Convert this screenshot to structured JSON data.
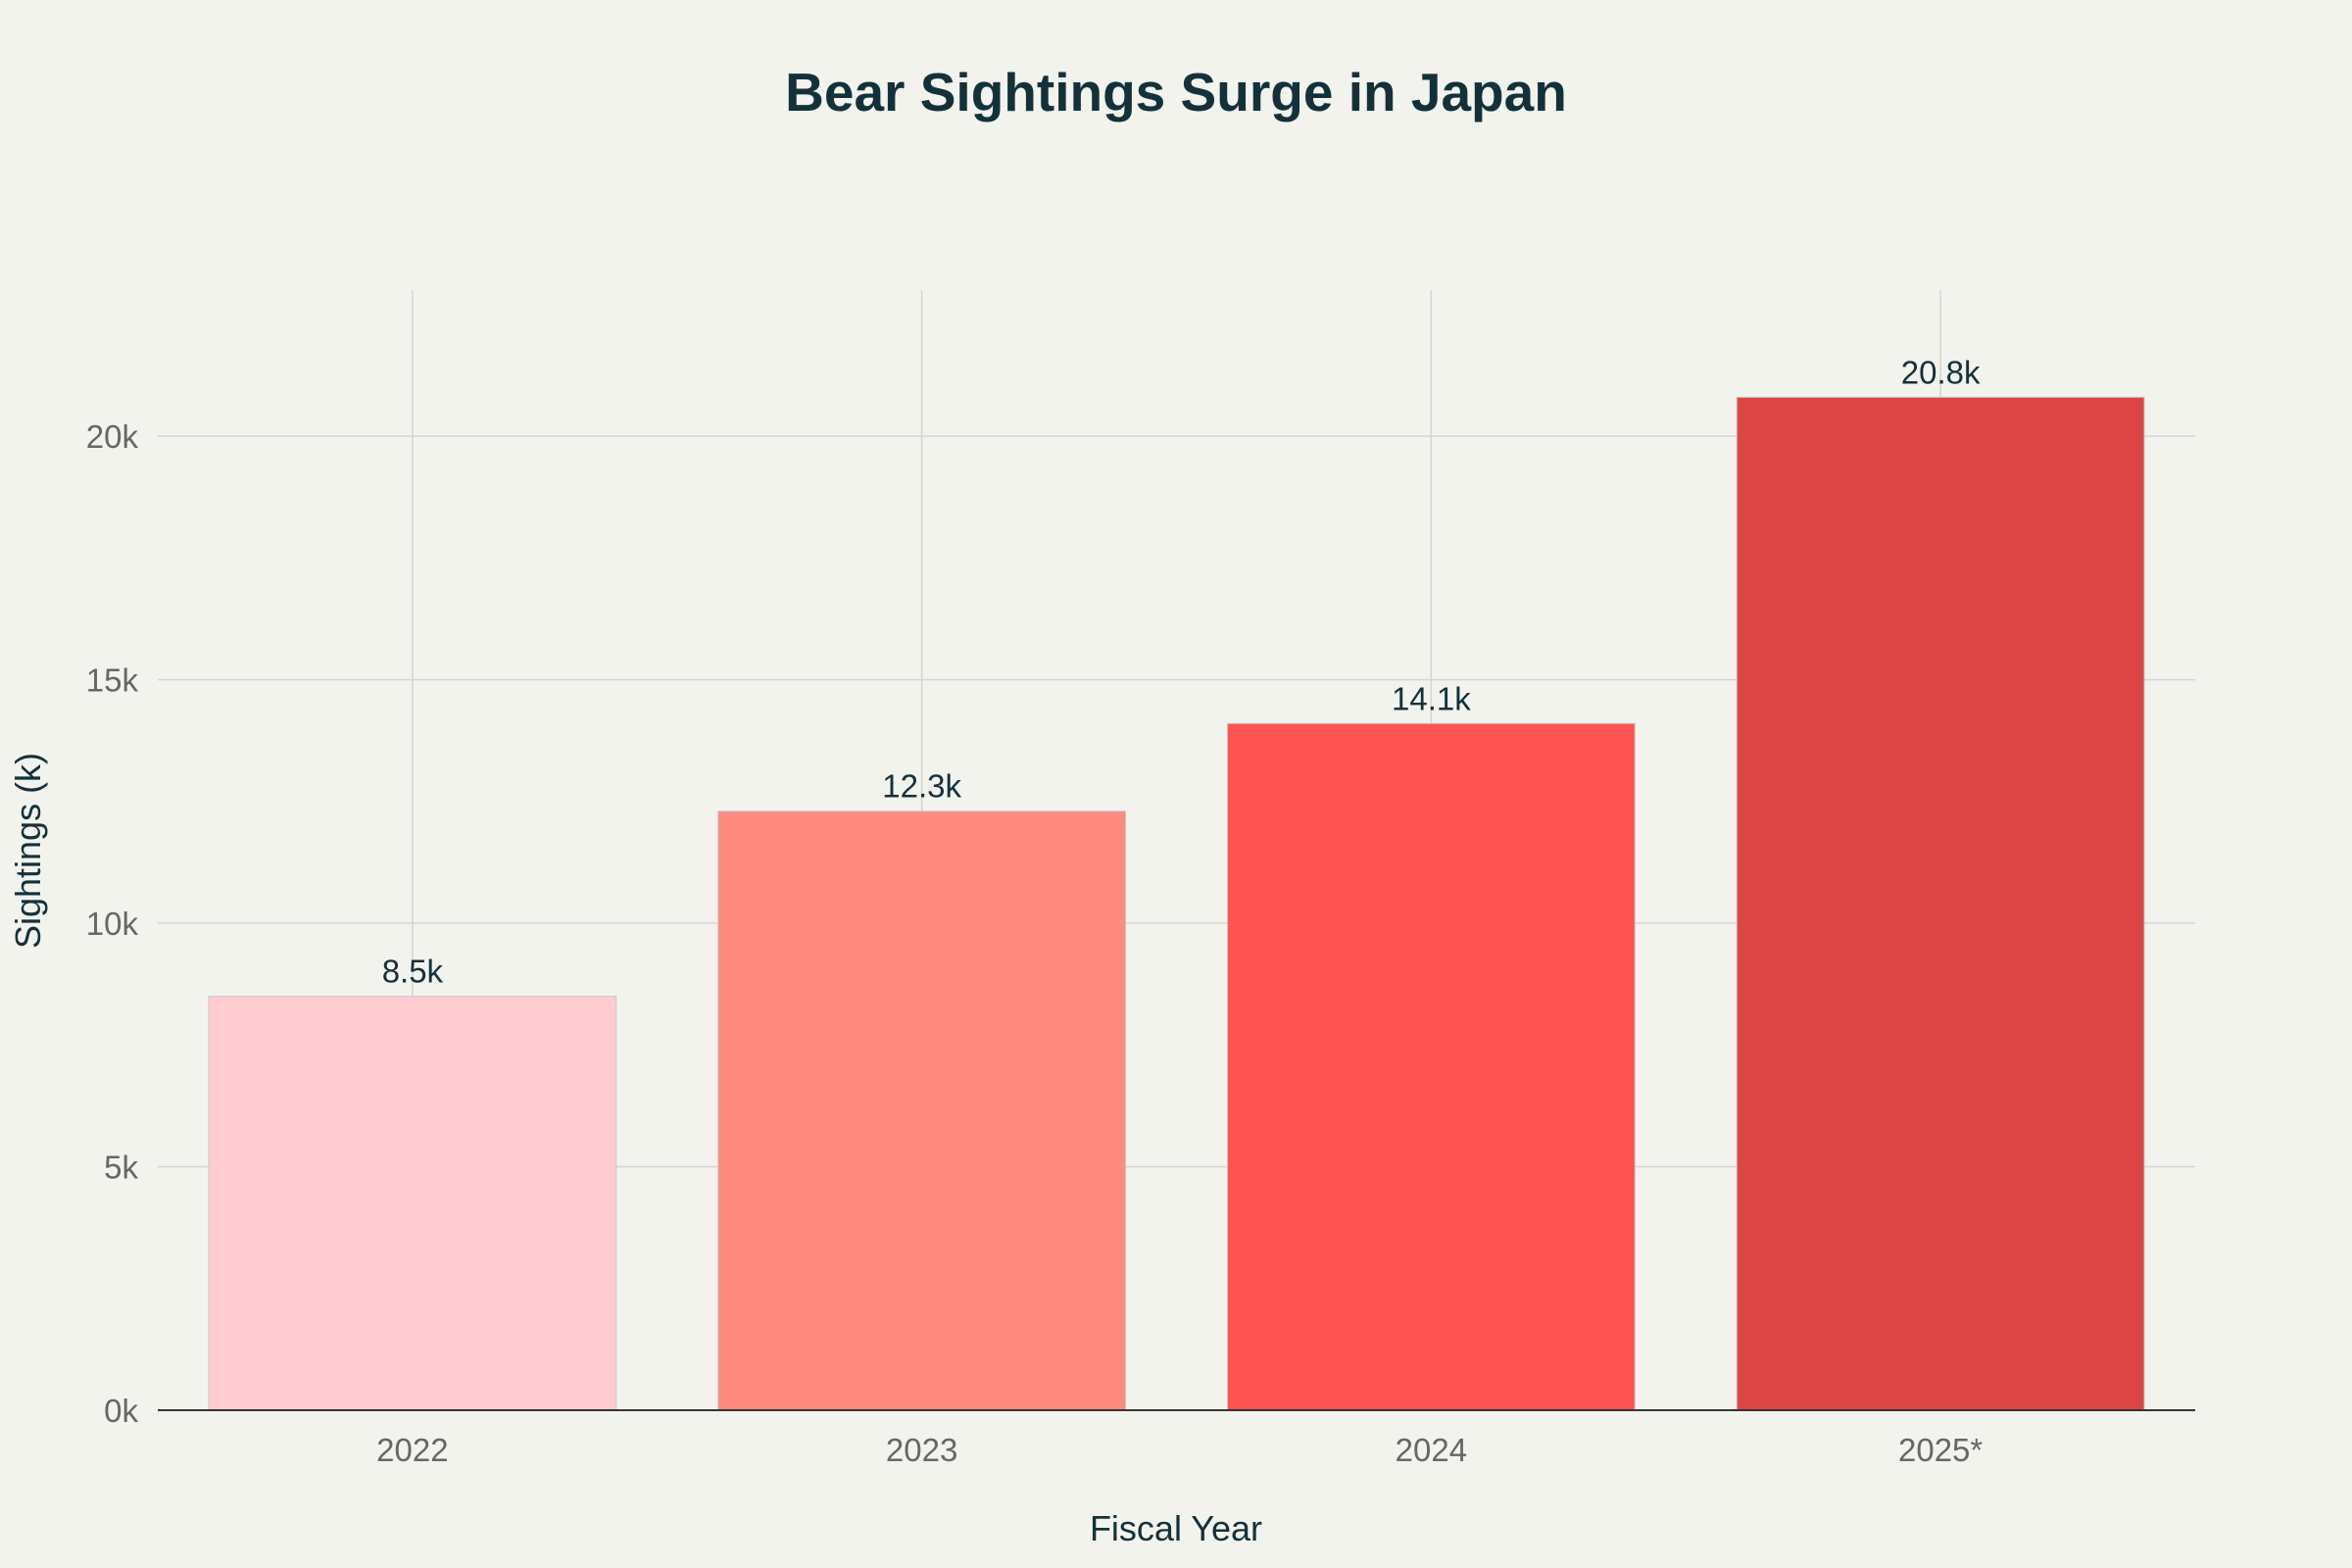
{
  "chart_data": {
    "type": "bar",
    "title": "Bear Sightings Surge in Japan",
    "xlabel": "Fiscal Year",
    "ylabel": "Sightings (k)",
    "categories": [
      "2022",
      "2023",
      "2024",
      "2025*"
    ],
    "values": [
      8.5,
      12.3,
      14.1,
      20.8
    ],
    "data_labels": [
      "8.5k",
      "12.3k",
      "14.1k",
      "20.8k"
    ],
    "bar_colors": [
      "#ffcbd0",
      "#ff8a80",
      "#ff5252",
      "#dd4545"
    ],
    "ylim": [
      0,
      23
    ],
    "y_ticks": [
      0,
      5,
      10,
      15,
      20
    ],
    "y_tick_labels": [
      "0k",
      "5k",
      "10k",
      "15k",
      "20k"
    ],
    "grid": true,
    "legend": "none",
    "colors": {
      "background": "#f3f3ee",
      "grid": "#d4d4d0",
      "axis_line": "#333333",
      "text": "#13313a",
      "tick_text": "#666666"
    }
  }
}
